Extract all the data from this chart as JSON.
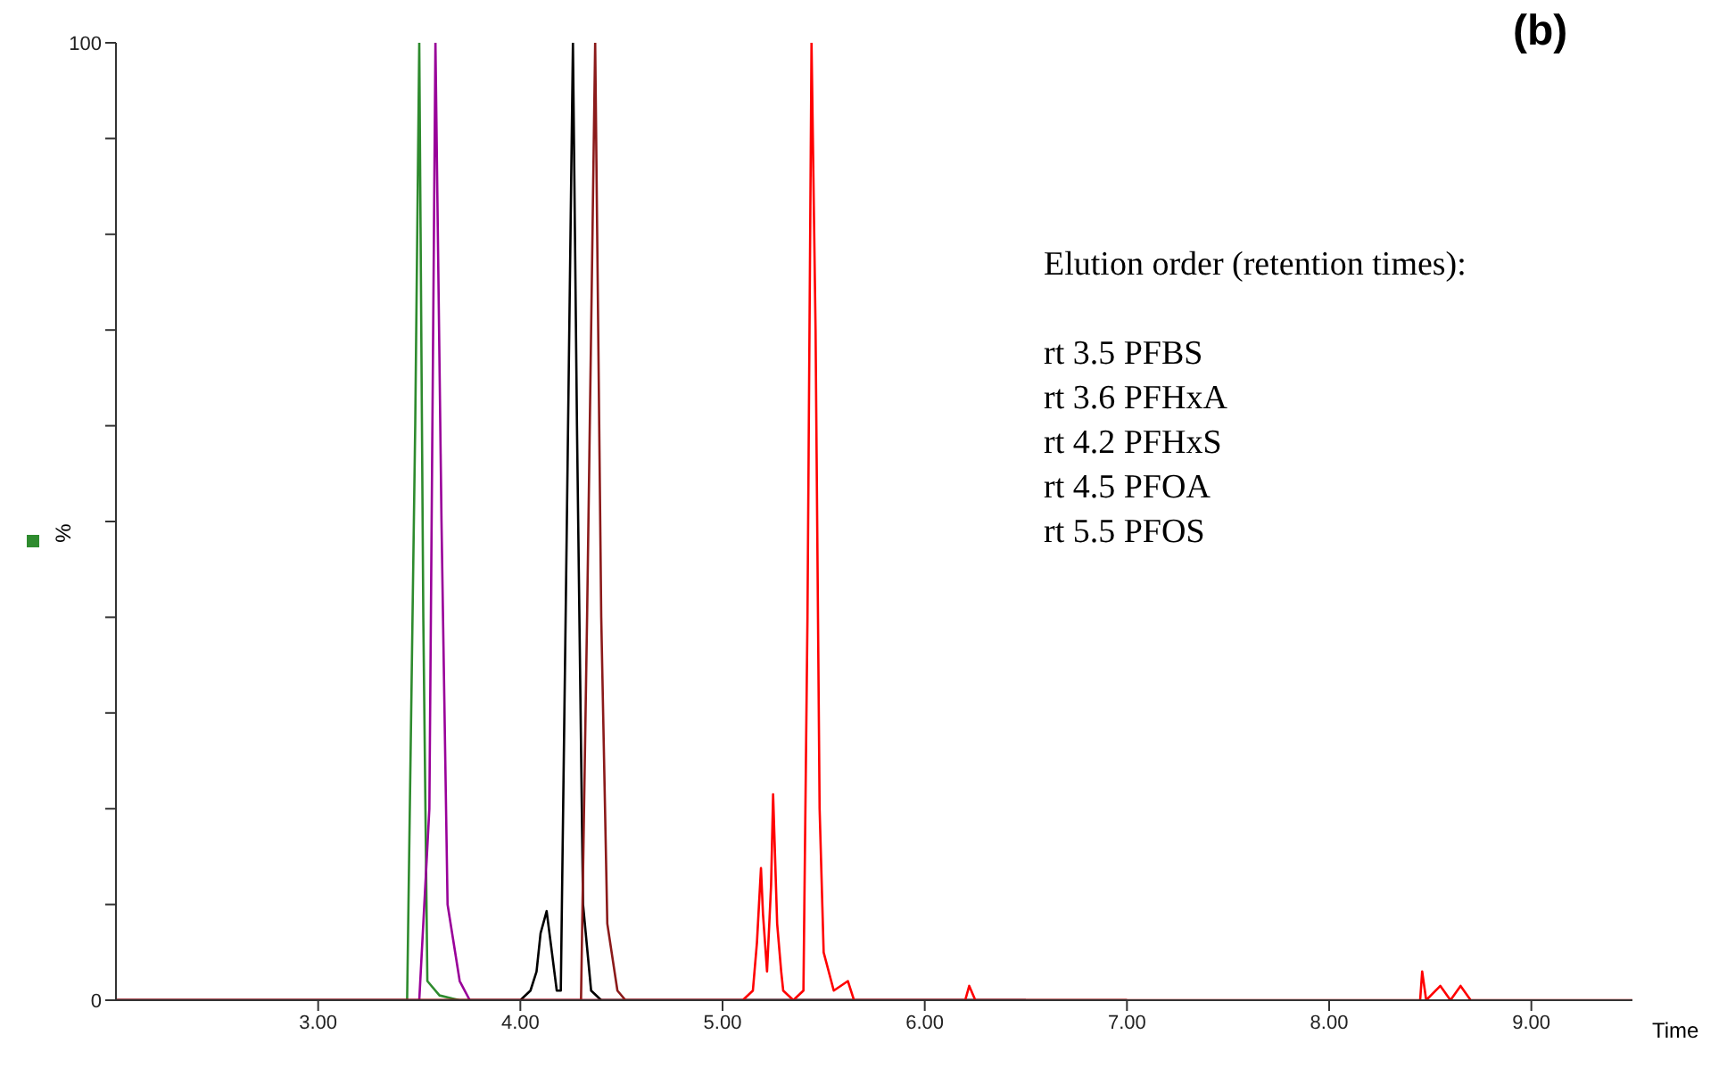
{
  "chart_data": {
    "type": "line",
    "title": "(b)",
    "xlabel": "Time",
    "ylabel": "%",
    "xlim": [
      2.0,
      9.5
    ],
    "ylim": [
      0,
      100
    ],
    "xticks": [
      {
        "value": 3,
        "label": "3.00"
      },
      {
        "value": 4,
        "label": "4.00"
      },
      {
        "value": 5,
        "label": "5.00"
      },
      {
        "value": 6,
        "label": "6.00"
      },
      {
        "value": 7,
        "label": "7.00"
      },
      {
        "value": 8,
        "label": "8.00"
      },
      {
        "value": 9,
        "label": "9.00"
      }
    ],
    "yticks": [
      0,
      {
        "value": 10,
        "label": null
      },
      {
        "value": 20,
        "label": null
      },
      {
        "value": 30,
        "label": null
      },
      {
        "value": 40,
        "label": null
      },
      {
        "value": 50,
        "label": null
      },
      {
        "value": 60,
        "label": null
      },
      {
        "value": 70,
        "label": null
      },
      {
        "value": 80,
        "label": null
      },
      {
        "value": 90,
        "label": null
      },
      100
    ],
    "marker": "none",
    "line_style": "solid",
    "annotations": [
      "Elution order (retention times):",
      "rt 3.5 PFBS",
      "rt 3.6 PFHxA",
      "rt 4.2 PFHxS",
      "rt 4.5 PFOA",
      "rt 5.5 PFOS"
    ],
    "series": [
      {
        "color": "#2e8b2e",
        "x": [
          2.0,
          3.44,
          3.48,
          3.5,
          3.52,
          3.54,
          3.6,
          3.7,
          6.5
        ],
        "values": [
          0,
          0,
          60,
          100,
          40,
          2,
          0.5,
          0,
          0
        ]
      },
      {
        "color": "#990099",
        "x": [
          2.0,
          3.5,
          3.55,
          3.58,
          3.61,
          3.64,
          3.7,
          3.75,
          6.5
        ],
        "values": [
          0,
          0,
          20,
          100,
          50,
          10,
          2,
          0,
          0
        ]
      },
      {
        "color": "#000000",
        "x": [
          2.0,
          4.0,
          4.05,
          4.08,
          4.1,
          4.13,
          4.15,
          4.18,
          4.2,
          4.23,
          4.26,
          4.28,
          4.31,
          4.35,
          4.4,
          7.0
        ],
        "values": [
          0,
          0,
          1,
          3,
          7,
          9.3,
          6,
          1,
          1,
          50,
          100,
          60,
          10,
          1,
          0,
          0
        ]
      },
      {
        "color": "#8b1a1a",
        "x": [
          2.0,
          4.3,
          4.33,
          4.37,
          4.4,
          4.43,
          4.48,
          4.52,
          7.0
        ],
        "values": [
          0,
          0,
          40,
          100,
          40,
          8,
          1,
          0,
          0
        ]
      },
      {
        "color": "#ff0000",
        "x": [
          2.0,
          5.1,
          5.15,
          5.17,
          5.19,
          5.2,
          5.22,
          5.24,
          5.25,
          5.27,
          5.29,
          5.3,
          5.35,
          5.4,
          5.42,
          5.44,
          5.46,
          5.48,
          5.5,
          5.55,
          5.62,
          5.65,
          6.2,
          6.22,
          6.25,
          8.45,
          8.46,
          8.48,
          8.55,
          8.6,
          8.65,
          8.7,
          9.5
        ],
        "values": [
          0,
          0,
          1,
          6,
          13.8,
          9,
          3,
          12,
          21.5,
          8,
          3,
          1,
          0,
          1,
          40,
          100,
          70,
          20,
          5,
          1,
          2,
          0,
          0,
          1.5,
          0,
          0,
          3,
          0,
          1.5,
          0,
          1.5,
          0,
          0
        ]
      }
    ]
  }
}
